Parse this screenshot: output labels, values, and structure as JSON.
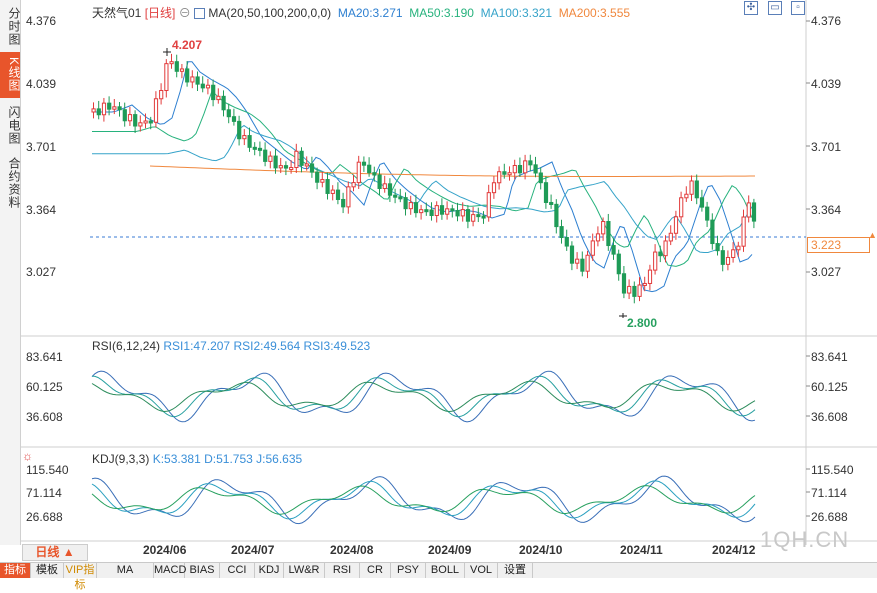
{
  "left_tabs": [
    "分时图",
    "K线图",
    "闪电图",
    "合约资料"
  ],
  "header": {
    "symbol": "天然气01",
    "period": "[日线]",
    "ma_label": "MA(20,50,100,200,0,0)",
    "ma20": "MA20:3.271",
    "ma50": "MA50:3.190",
    "ma100": "MA100:3.321",
    "ma200": "MA200:3.555"
  },
  "price_axis": [
    "4.376",
    "4.039",
    "3.701",
    "3.364",
    "3.027"
  ],
  "current_price": "3.223",
  "high_label": "4.207",
  "low_label": "2.800",
  "rsi": {
    "label": "RSI(6,12,24)",
    "rsi1": "RSI1:47.207",
    "rsi2": "RSI2:49.564",
    "rsi3": "RSI3:49.523",
    "axis": [
      "83.641",
      "60.125",
      "36.608"
    ]
  },
  "kdj": {
    "label": "KDJ(9,3,3)",
    "k": "K:53.381",
    "d": "D:51.753",
    "j": "J:56.635",
    "axis": [
      "115.540",
      "71.114",
      "26.688"
    ]
  },
  "dates": [
    "2024/06",
    "2024/07",
    "2024/08",
    "2024/09",
    "2024/10",
    "2024/11",
    "2024/12"
  ],
  "period_button": "日线",
  "watermark": "1QH.CN",
  "bottom_tabs": [
    "指标",
    "模板",
    "VIP指标",
    "MA",
    "MACD",
    "BIAS",
    "CCI",
    "KDJ",
    "LW&R",
    "RSI",
    "CR",
    "PSY",
    "BOLL",
    "VOL",
    "设置"
  ],
  "colors": {
    "up": "#e23b3b",
    "down": "#1f9b57",
    "ma20": "#2d7fd0",
    "ma50": "#27b27d",
    "ma100": "#36a3c9",
    "ma200": "#f0883e",
    "accent": "#e8552b",
    "header_red": "#e04040"
  },
  "icons": [
    "gear-icon",
    "expand-icon",
    "restore-icon",
    "minimize-icon",
    "close-icon",
    "crosshair-icon"
  ]
}
